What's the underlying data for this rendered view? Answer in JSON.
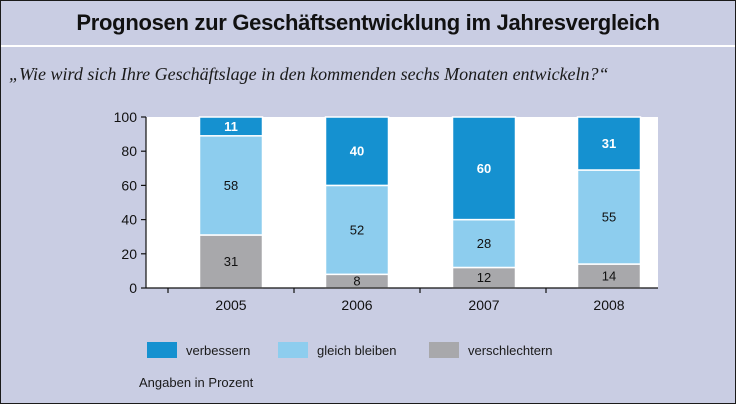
{
  "header": {
    "title": "Prognosen zur Geschäftsentwicklung im Jahresvergleich",
    "subtitle": "„Wie wird sich Ihre Geschäftslage in den kommenden sechs Monaten entwickeln?“"
  },
  "footnote": "Angaben in Prozent",
  "colors": {
    "verbessern": "#1591d0",
    "gleich_bleiben": "#8dcdee",
    "verschlechtern": "#a8a8ab"
  },
  "chart_data": {
    "type": "bar",
    "stacked": true,
    "categories": [
      "2005",
      "2006",
      "2007",
      "2008"
    ],
    "series": [
      {
        "name": "verschlechtern",
        "values": [
          31,
          8,
          12,
          14
        ]
      },
      {
        "name": "gleich bleiben",
        "values": [
          58,
          52,
          28,
          55
        ]
      },
      {
        "name": "verbessern",
        "values": [
          11,
          40,
          60,
          31
        ]
      }
    ],
    "ylim": [
      0,
      100
    ],
    "yticks": [
      0,
      20,
      40,
      60,
      80,
      100
    ],
    "legend_position": "bottom",
    "grid": false,
    "connector_lines": true
  }
}
